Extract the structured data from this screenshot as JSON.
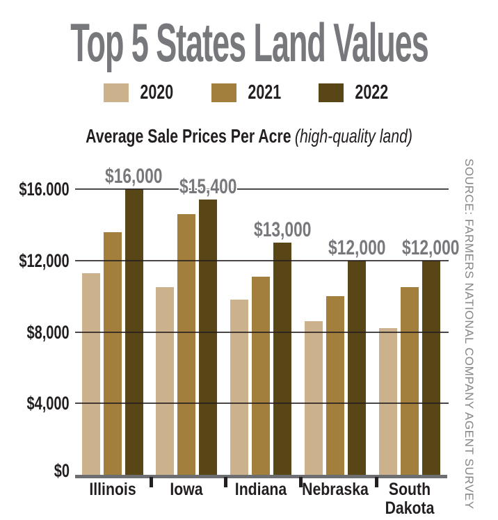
{
  "title": "Top 5 States Land Values",
  "subtitle": {
    "bold": "Average Sale Prices Per Acre",
    "italic": "(high-quality land)"
  },
  "legend": [
    {
      "label": "2020",
      "color": "#cbb28c"
    },
    {
      "label": "2021",
      "color": "#a27f3d"
    },
    {
      "label": "2022",
      "color": "#594617"
    }
  ],
  "source": "SOURCE: FARMERS NATIONAL COMPANY AGENT SURVEY",
  "colors": {
    "title_gray": "#77787b",
    "value_label_gray": "#77787b",
    "text_black": "#231f20",
    "baseline_gray": "#6d6e71",
    "source_gray": "#85868a",
    "bar_2020": "#cbb28c",
    "bar_2021": "#a27f3d",
    "bar_2022": "#594617"
  },
  "chart_data": {
    "type": "bar",
    "title": "Top 5 States Land Values",
    "subtitle": "Average Sale Prices Per Acre (high-quality land)",
    "categories": [
      "Illinois",
      "Iowa",
      "Indiana",
      "Nebraska",
      "South Dakota"
    ],
    "series": [
      {
        "name": "2020",
        "color": "#cbb28c",
        "values": [
          11300,
          10500,
          9800,
          8600,
          8200
        ]
      },
      {
        "name": "2021",
        "color": "#a27f3d",
        "values": [
          13600,
          14600,
          11100,
          10000,
          10500
        ]
      },
      {
        "name": "2022",
        "color": "#594617",
        "values": [
          16000,
          15400,
          13000,
          12000,
          12000
        ]
      }
    ],
    "bar_labels": {
      "series": "2022",
      "texts": [
        "$16,000",
        "$15,400",
        "$13,000",
        "$12,000",
        "$12,000"
      ]
    },
    "y_ticks": [
      {
        "value": 16000,
        "label": "$16.000"
      },
      {
        "value": 12000,
        "label": "$12,000"
      },
      {
        "value": 8000,
        "label": "$8,000"
      },
      {
        "value": 4000,
        "label": "$4,000"
      },
      {
        "value": 0,
        "label": "$0"
      }
    ],
    "ylim": [
      0,
      16000
    ],
    "xlabel": "",
    "ylabel": "",
    "grid": "horizontal",
    "legend_position": "top",
    "source": "SOURCE: FARMERS NATIONAL COMPANY AGENT SURVEY"
  }
}
